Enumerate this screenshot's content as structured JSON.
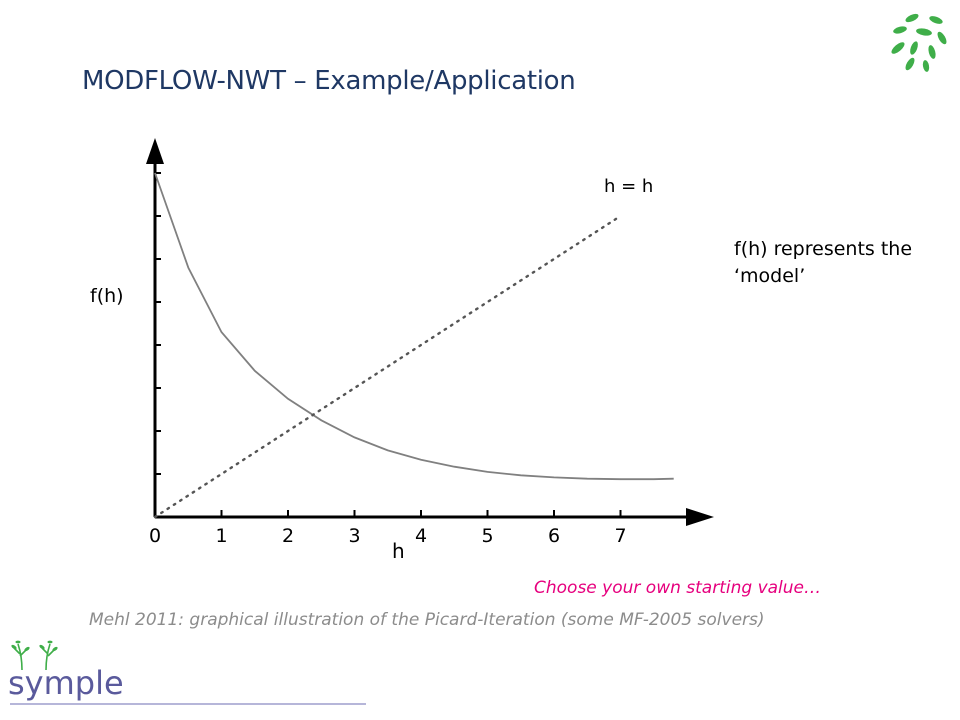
{
  "slide": {
    "title": "MODFLOW-NWT – Example/Application",
    "side_note": "f(h) represents the ‘model’",
    "hint": "Choose your own starting value…",
    "caption": "Mehl 2011: graphical illustration of the Picard-Iteration (some MF-2005 solvers)",
    "brand_name": "symple",
    "colors": {
      "title": "#1f3864",
      "hint": "#e6007e",
      "caption": "#8c8c8c",
      "leaf": "#3fae49",
      "brand": "#5a5a9c"
    }
  },
  "chart_data": {
    "type": "line",
    "xlabel": "h",
    "ylabel": "f(h)",
    "x_ticks": [
      "0",
      "1",
      "2",
      "3",
      "4",
      "5",
      "6",
      "7"
    ],
    "xlim": [
      0,
      7.8
    ],
    "ylim": [
      0,
      8
    ],
    "y_tick_count": 8,
    "grid": false,
    "series": [
      {
        "name": "f(h)",
        "style": "solid",
        "color": "#808080",
        "x": [
          0,
          0.5,
          1,
          1.5,
          2,
          2.5,
          3,
          3.5,
          4,
          4.5,
          5,
          5.5,
          6,
          6.5,
          7,
          7.5,
          7.8
        ],
        "y": [
          8.0,
          5.8,
          4.3,
          3.4,
          2.75,
          2.25,
          1.85,
          1.55,
          1.33,
          1.17,
          1.05,
          0.97,
          0.92,
          0.89,
          0.88,
          0.88,
          0.89
        ]
      },
      {
        "name": "h = h",
        "style": "dotted",
        "color": "#555555",
        "x": [
          0,
          7
        ],
        "y": [
          0,
          7
        ]
      }
    ]
  }
}
